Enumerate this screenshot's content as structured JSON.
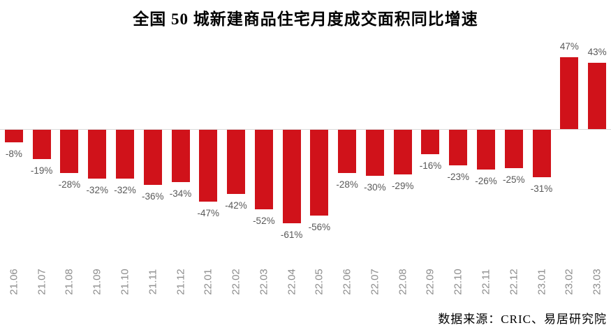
{
  "title": "全国 50 城新建商品住宅月度成交面积同比增速",
  "source": "数据来源：CRIC、易居研究院",
  "colors": {
    "bar": "#d0121a",
    "axis_line": "#d9d9d9",
    "data_label": "#595959",
    "tick_label": "#8c8c8c",
    "title": "#000000"
  },
  "chart_data": {
    "type": "bar",
    "title": "全国 50 城新建商品住宅月度成交面积同比增速",
    "categories": [
      "21.06",
      "21.07",
      "21.08",
      "21.09",
      "21.10",
      "21.11",
      "21.12",
      "22.01",
      "22.02",
      "22.03",
      "22.04",
      "22.05",
      "22.06",
      "22.07",
      "22.08",
      "22.09",
      "22.10",
      "22.11",
      "22.12",
      "23.01",
      "23.02",
      "23.03"
    ],
    "values": [
      -8,
      -19,
      -28,
      -32,
      -32,
      -36,
      -34,
      -47,
      -42,
      -52,
      -61,
      -56,
      -28,
      -30,
      -29,
      -16,
      -23,
      -26,
      -25,
      -31,
      47,
      43
    ],
    "value_labels": [
      "-8%",
      "-19%",
      "-28%",
      "-32%",
      "-32%",
      "-36%",
      "-34%",
      "-47%",
      "-42%",
      "-52%",
      "-61%",
      "-56%",
      "-28%",
      "-30%",
      "-29%",
      "-16%",
      "-23%",
      "-26%",
      "-25%",
      "-31%",
      "47%",
      "43%"
    ],
    "unit": "%",
    "xlabel": "",
    "ylabel": "",
    "ylim": [
      -70,
      55
    ],
    "grid": false,
    "legend": "none",
    "baseline": 0,
    "data_label_position": "outside_end",
    "tick_label_rotation": 90
  }
}
